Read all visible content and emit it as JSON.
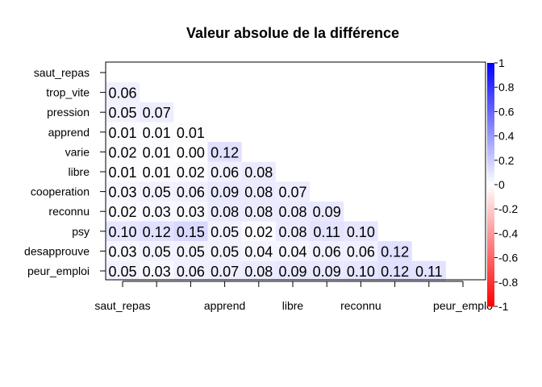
{
  "chart_data": {
    "type": "heatmap",
    "title": "Valeur absolue de la différence",
    "xlabel": "",
    "ylabel": "",
    "rows": [
      "saut_repas",
      "trop_vite",
      "pression",
      "apprend",
      "varie",
      "libre",
      "cooperation",
      "reconnu",
      "psy",
      "desapprouve",
      "peur_emploi"
    ],
    "columns": [
      "saut_repas",
      "trop_vite",
      "pression",
      "apprend",
      "varie",
      "libre",
      "cooperation",
      "reconnu",
      "psy",
      "desapprouve",
      "peur_emploi"
    ],
    "x_tick_labels": [
      {
        "col": 0,
        "label": "saut_repas"
      },
      {
        "col": 3,
        "label": "apprend"
      },
      {
        "col": 5,
        "label": "libre"
      },
      {
        "col": 7,
        "label": "reconnu"
      },
      {
        "col": 10,
        "label": "peur_emplo"
      }
    ],
    "values": [
      [],
      [
        0.06
      ],
      [
        0.05,
        0.07
      ],
      [
        0.01,
        0.01,
        0.01
      ],
      [
        0.02,
        0.01,
        0.0,
        0.12
      ],
      [
        0.01,
        0.01,
        0.02,
        0.06,
        0.08
      ],
      [
        0.03,
        0.05,
        0.06,
        0.09,
        0.08,
        0.07
      ],
      [
        0.02,
        0.03,
        0.03,
        0.08,
        0.08,
        0.08,
        0.09
      ],
      [
        0.1,
        0.12,
        0.15,
        0.05,
        0.02,
        0.08,
        0.11,
        0.1
      ],
      [
        0.03,
        0.05,
        0.05,
        0.05,
        0.04,
        0.04,
        0.06,
        0.06,
        0.12
      ],
      [
        0.05,
        0.03,
        0.06,
        0.07,
        0.08,
        0.09,
        0.09,
        0.1,
        0.12,
        0.11
      ]
    ],
    "color_scale": {
      "range": [
        -1,
        1
      ],
      "ticks": [
        "1",
        "0.8",
        "0.6",
        "0.4",
        "0.2",
        "0",
        "-0.2",
        "-0.4",
        "-0.6",
        "-0.8",
        "-1"
      ],
      "low_color": "#FF0000",
      "mid_color": "#FFFFFF",
      "high_color": "#0000FF"
    },
    "legend": "right",
    "grid": false
  }
}
